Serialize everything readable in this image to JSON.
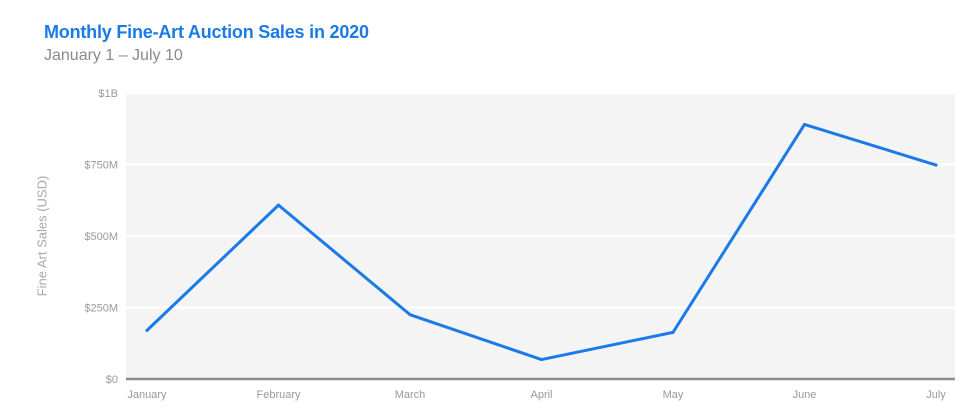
{
  "header": {
    "title": "Monthly Fine-Art Auction Sales in 2020",
    "subtitle": "January 1 – July 10"
  },
  "colors": {
    "accent": "#1a7ae8",
    "plot_background": "#f4f4f4",
    "axis": "#8c8c8c",
    "grid": "#ffffff"
  },
  "chart_data": {
    "type": "line",
    "title": "Monthly Fine-Art Auction Sales in 2020",
    "subtitle": "January 1 – July 10",
    "xlabel": "",
    "ylabel": "Fine Art Sales (USD)",
    "categories": [
      "January",
      "February",
      "March",
      "April",
      "May",
      "June",
      "July"
    ],
    "series": [
      {
        "values": [
          170000000,
          608000000,
          225000000,
          68000000,
          163000000,
          890000000,
          748000000
        ]
      }
    ],
    "ylim": [
      0,
      1000000000
    ],
    "yticks": [
      {
        "value": 0,
        "label": "$0"
      },
      {
        "value": 250000000,
        "label": "$250M"
      },
      {
        "value": 500000000,
        "label": "$500M"
      },
      {
        "value": 750000000,
        "label": "$750M"
      },
      {
        "value": 1000000000,
        "label": "$1B"
      }
    ],
    "grid": true,
    "legend": "none"
  }
}
